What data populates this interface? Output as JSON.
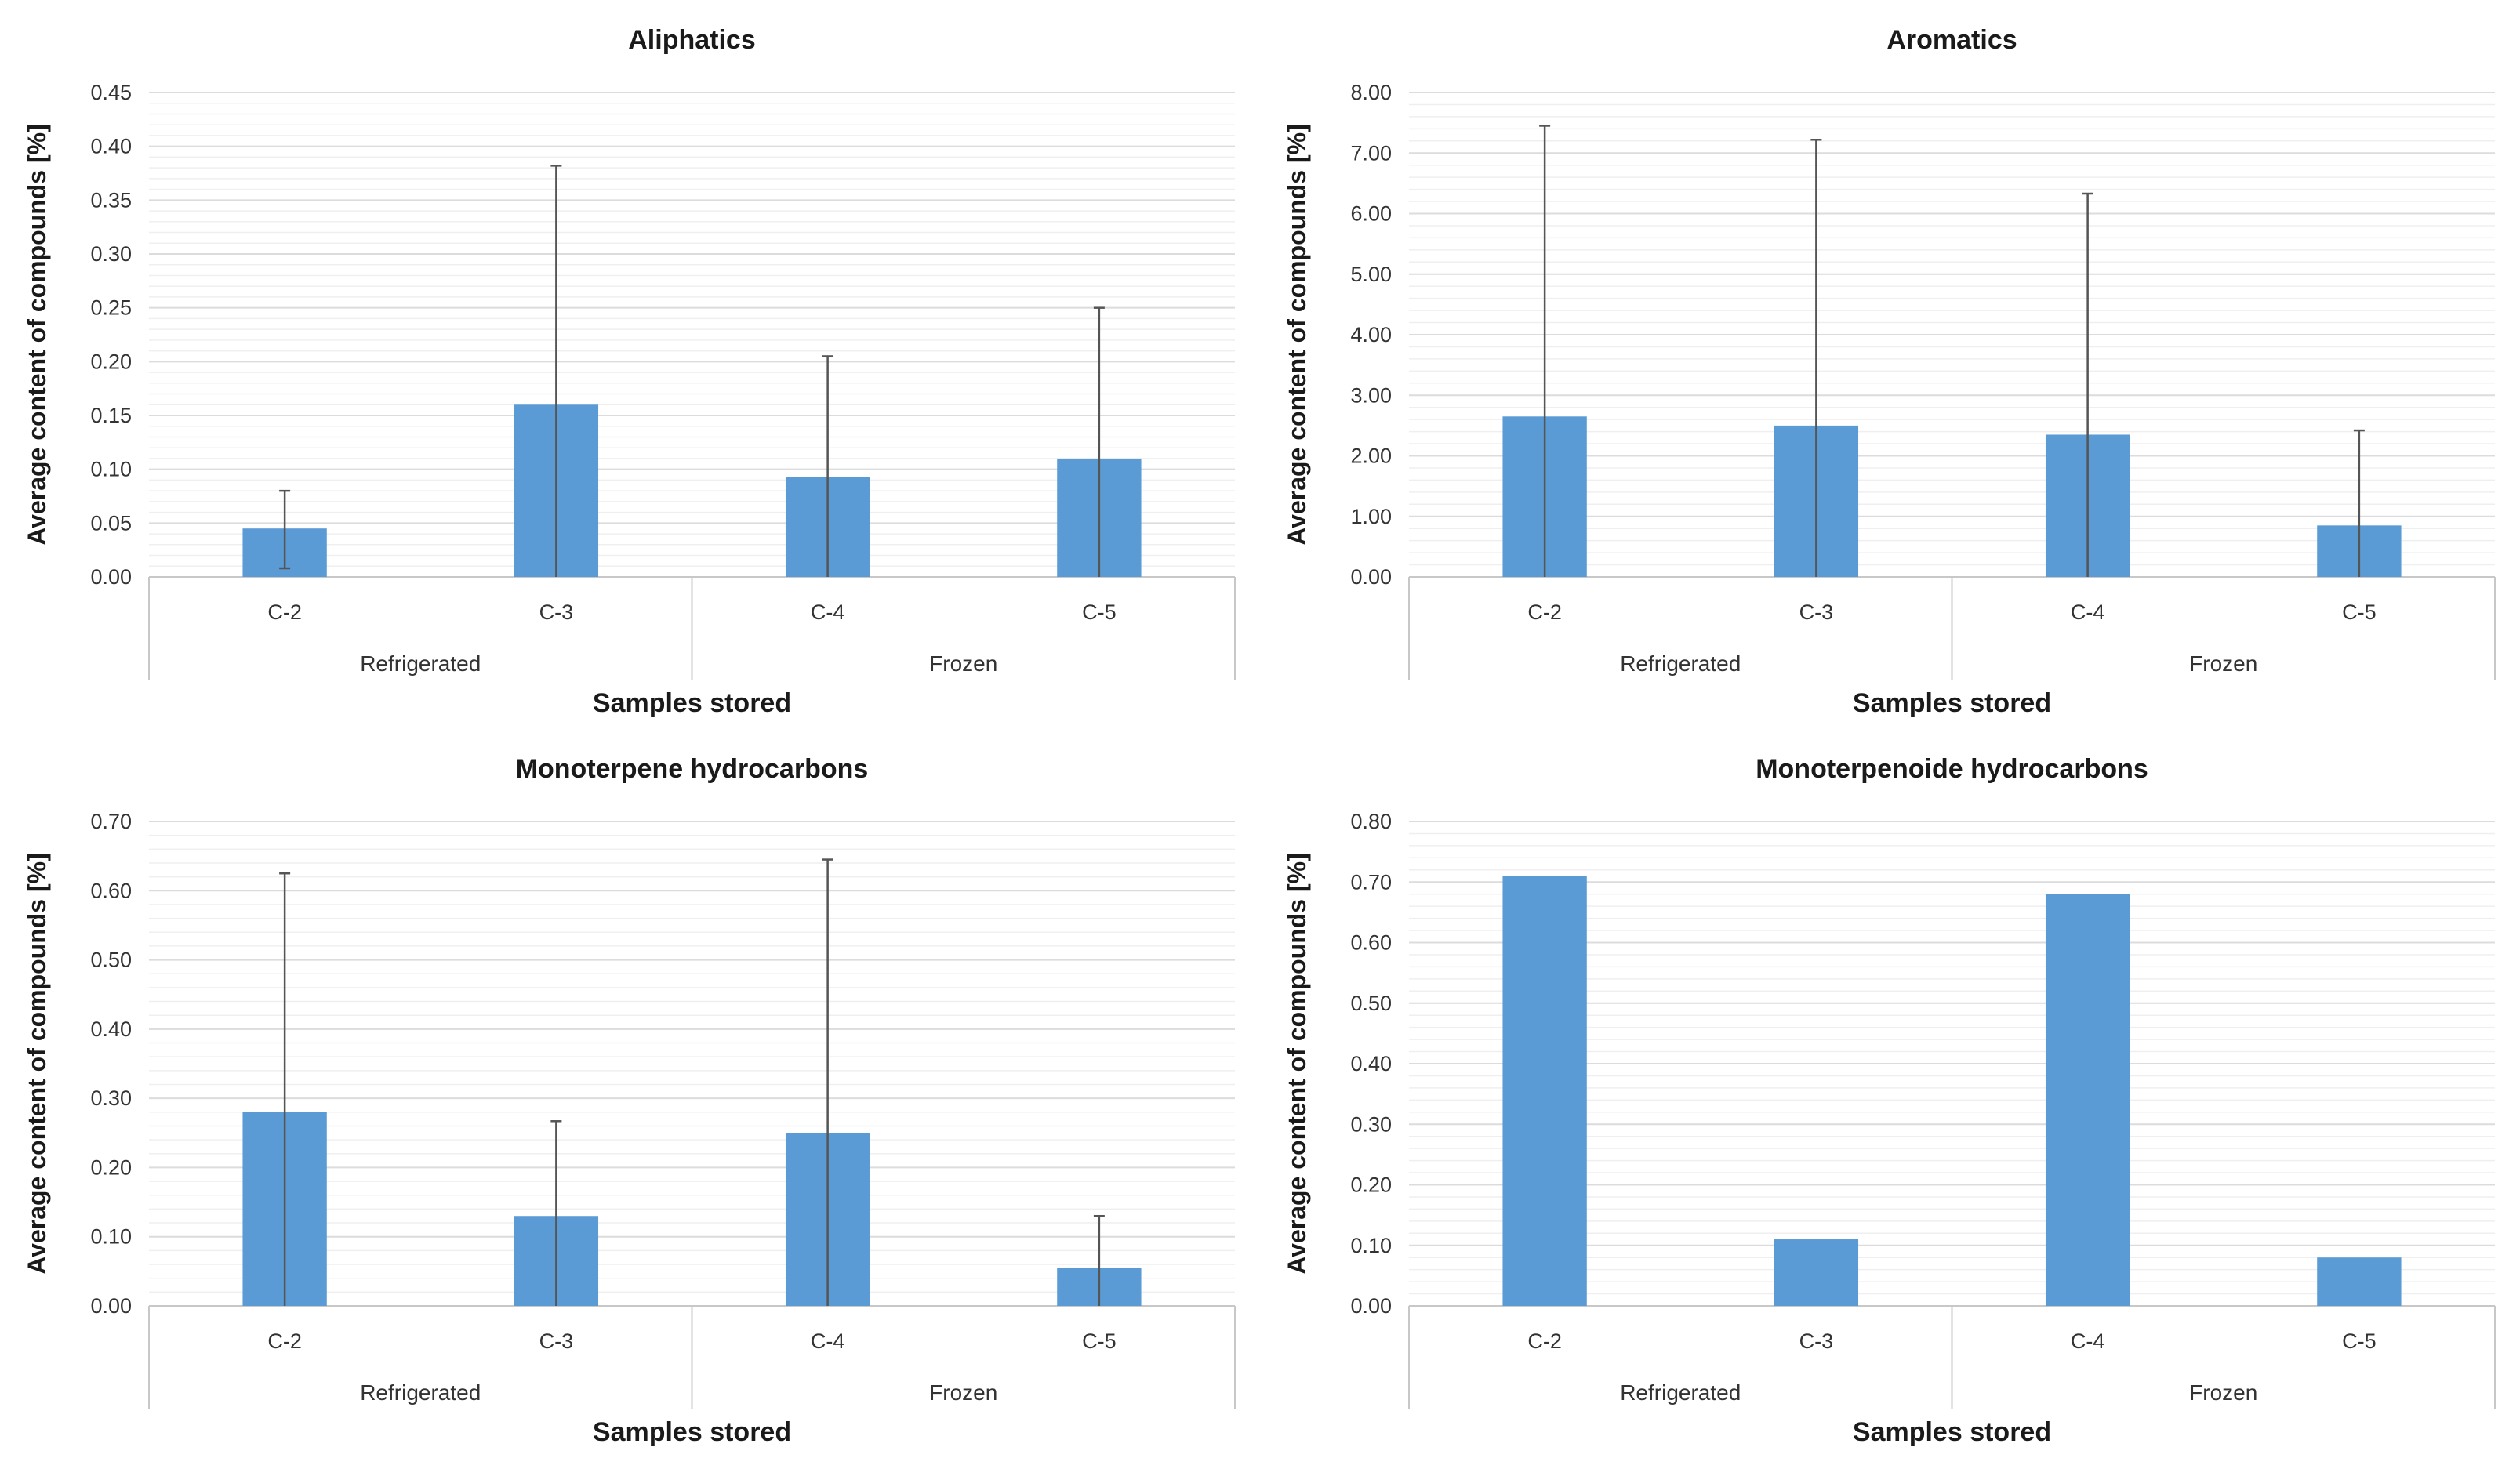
{
  "chart_data": [
    {
      "type": "bar",
      "title": "Aliphatics",
      "xlabel": "Samples stored",
      "ylabel": "Average content of compounds  [%]",
      "categories": [
        "C-2",
        "C-3",
        "C-4",
        "C-5"
      ],
      "groups": [
        {
          "label": "Refrigerated",
          "categories": [
            "C-2",
            "C-3"
          ]
        },
        {
          "label": "Frozen",
          "categories": [
            "C-4",
            "C-5"
          ]
        }
      ],
      "values": [
        0.045,
        0.16,
        0.093,
        0.11
      ],
      "error_plus": [
        0.035,
        0.222,
        0.112,
        0.14
      ],
      "error_minus": [
        0.037,
        0.16,
        0.093,
        0.11
      ],
      "ylim": [
        0,
        0.45
      ],
      "yticks": [
        "0.00",
        "0.05",
        "0.10",
        "0.15",
        "0.20",
        "0.25",
        "0.30",
        "0.35",
        "0.40",
        "0.45"
      ],
      "grid": true,
      "color": "#5b9bd5"
    },
    {
      "type": "bar",
      "title": "Aromatics",
      "xlabel": "Samples stored",
      "ylabel": "Average content of compounds  [%]",
      "categories": [
        "C-2",
        "C-3",
        "C-4",
        "C-5"
      ],
      "groups": [
        {
          "label": "Refrigerated",
          "categories": [
            "C-2",
            "C-3"
          ]
        },
        {
          "label": "Frozen",
          "categories": [
            "C-4",
            "C-5"
          ]
        }
      ],
      "values": [
        2.65,
        2.5,
        2.35,
        0.85
      ],
      "error_plus": [
        4.8,
        4.72,
        3.98,
        1.57
      ],
      "error_minus": [
        2.65,
        2.5,
        2.35,
        0.85
      ],
      "ylim": [
        0,
        8
      ],
      "yticks": [
        "0.00",
        "1.00",
        "2.00",
        "3.00",
        "4.00",
        "5.00",
        "6.00",
        "7.00",
        "8.00"
      ],
      "grid": true,
      "color": "#5b9bd5"
    },
    {
      "type": "bar",
      "title": "Monoterpene hydrocarbons",
      "xlabel": "Samples stored",
      "ylabel": "Average content of compounds  [%]",
      "categories": [
        "C-2",
        "C-3",
        "C-4",
        "C-5"
      ],
      "groups": [
        {
          "label": "Refrigerated",
          "categories": [
            "C-2",
            "C-3"
          ]
        },
        {
          "label": "Frozen",
          "categories": [
            "C-4",
            "C-5"
          ]
        }
      ],
      "values": [
        0.28,
        0.13,
        0.25,
        0.055
      ],
      "error_plus": [
        0.345,
        0.137,
        0.395,
        0.075
      ],
      "error_minus": [
        0.28,
        0.13,
        0.25,
        0.055
      ],
      "ylim": [
        0,
        0.7
      ],
      "yticks": [
        "0.00",
        "0.10",
        "0.20",
        "0.30",
        "0.40",
        "0.50",
        "0.60",
        "0.70"
      ],
      "grid": true,
      "color": "#5b9bd5"
    },
    {
      "type": "bar",
      "title": "Monoterpenoide hydrocarbons",
      "xlabel": "Samples stored",
      "ylabel": "Average content of compounds  [%]",
      "categories": [
        "C-2",
        "C-3",
        "C-4",
        "C-5"
      ],
      "groups": [
        {
          "label": "Refrigerated",
          "categories": [
            "C-2",
            "C-3"
          ]
        },
        {
          "label": "Frozen",
          "categories": [
            "C-4",
            "C-5"
          ]
        }
      ],
      "values": [
        0.71,
        0.11,
        0.68,
        0.08
      ],
      "error_plus": [
        0,
        0,
        0,
        0
      ],
      "error_minus": [
        0,
        0,
        0,
        0
      ],
      "ylim": [
        0,
        0.8
      ],
      "yticks": [
        "0.00",
        "0.10",
        "0.20",
        "0.30",
        "0.40",
        "0.50",
        "0.60",
        "0.70",
        "0.80"
      ],
      "grid": true,
      "color": "#5b9bd5"
    }
  ]
}
